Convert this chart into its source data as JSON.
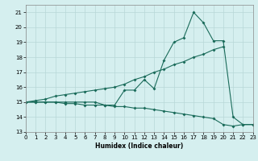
{
  "xlabel": "Humidex (Indice chaleur)",
  "x_values": [
    0,
    1,
    2,
    3,
    4,
    5,
    6,
    7,
    8,
    9,
    10,
    11,
    12,
    13,
    14,
    15,
    16,
    17,
    18,
    19,
    20,
    21,
    22,
    23
  ],
  "line1_y": [
    15,
    15,
    15,
    15,
    15,
    15,
    15,
    15,
    14.8,
    14.8,
    15.8,
    15.8,
    16.5,
    15.9,
    17.8,
    19.0,
    19.3,
    21.0,
    20.3,
    19.1,
    19.1,
    14.0,
    13.5,
    13.5
  ],
  "line2_y": [
    15,
    15,
    15,
    15,
    14.9,
    14.9,
    14.8,
    14.8,
    14.8,
    14.7,
    14.7,
    14.6,
    14.6,
    14.5,
    14.4,
    14.3,
    14.2,
    14.1,
    14.0,
    13.9,
    13.5,
    13.4,
    13.5,
    13.5
  ],
  "line3_y": [
    15,
    15.1,
    15.2,
    15.4,
    15.5,
    15.6,
    15.7,
    15.8,
    15.9,
    16.0,
    16.2,
    16.5,
    16.7,
    17.0,
    17.2,
    17.5,
    17.7,
    18.0,
    18.2,
    18.5,
    18.7,
    null,
    null,
    null
  ],
  "line_color": "#1a6b5a",
  "bg_color": "#d5efef",
  "grid_color": "#b8d8d8",
  "xlim": [
    0,
    23
  ],
  "ylim": [
    13,
    21.5
  ],
  "yticks": [
    13,
    14,
    15,
    16,
    17,
    18,
    19,
    20,
    21
  ],
  "xticks": [
    0,
    1,
    2,
    3,
    4,
    5,
    6,
    7,
    8,
    9,
    10,
    11,
    12,
    13,
    14,
    15,
    16,
    17,
    18,
    19,
    20,
    21,
    22,
    23
  ]
}
